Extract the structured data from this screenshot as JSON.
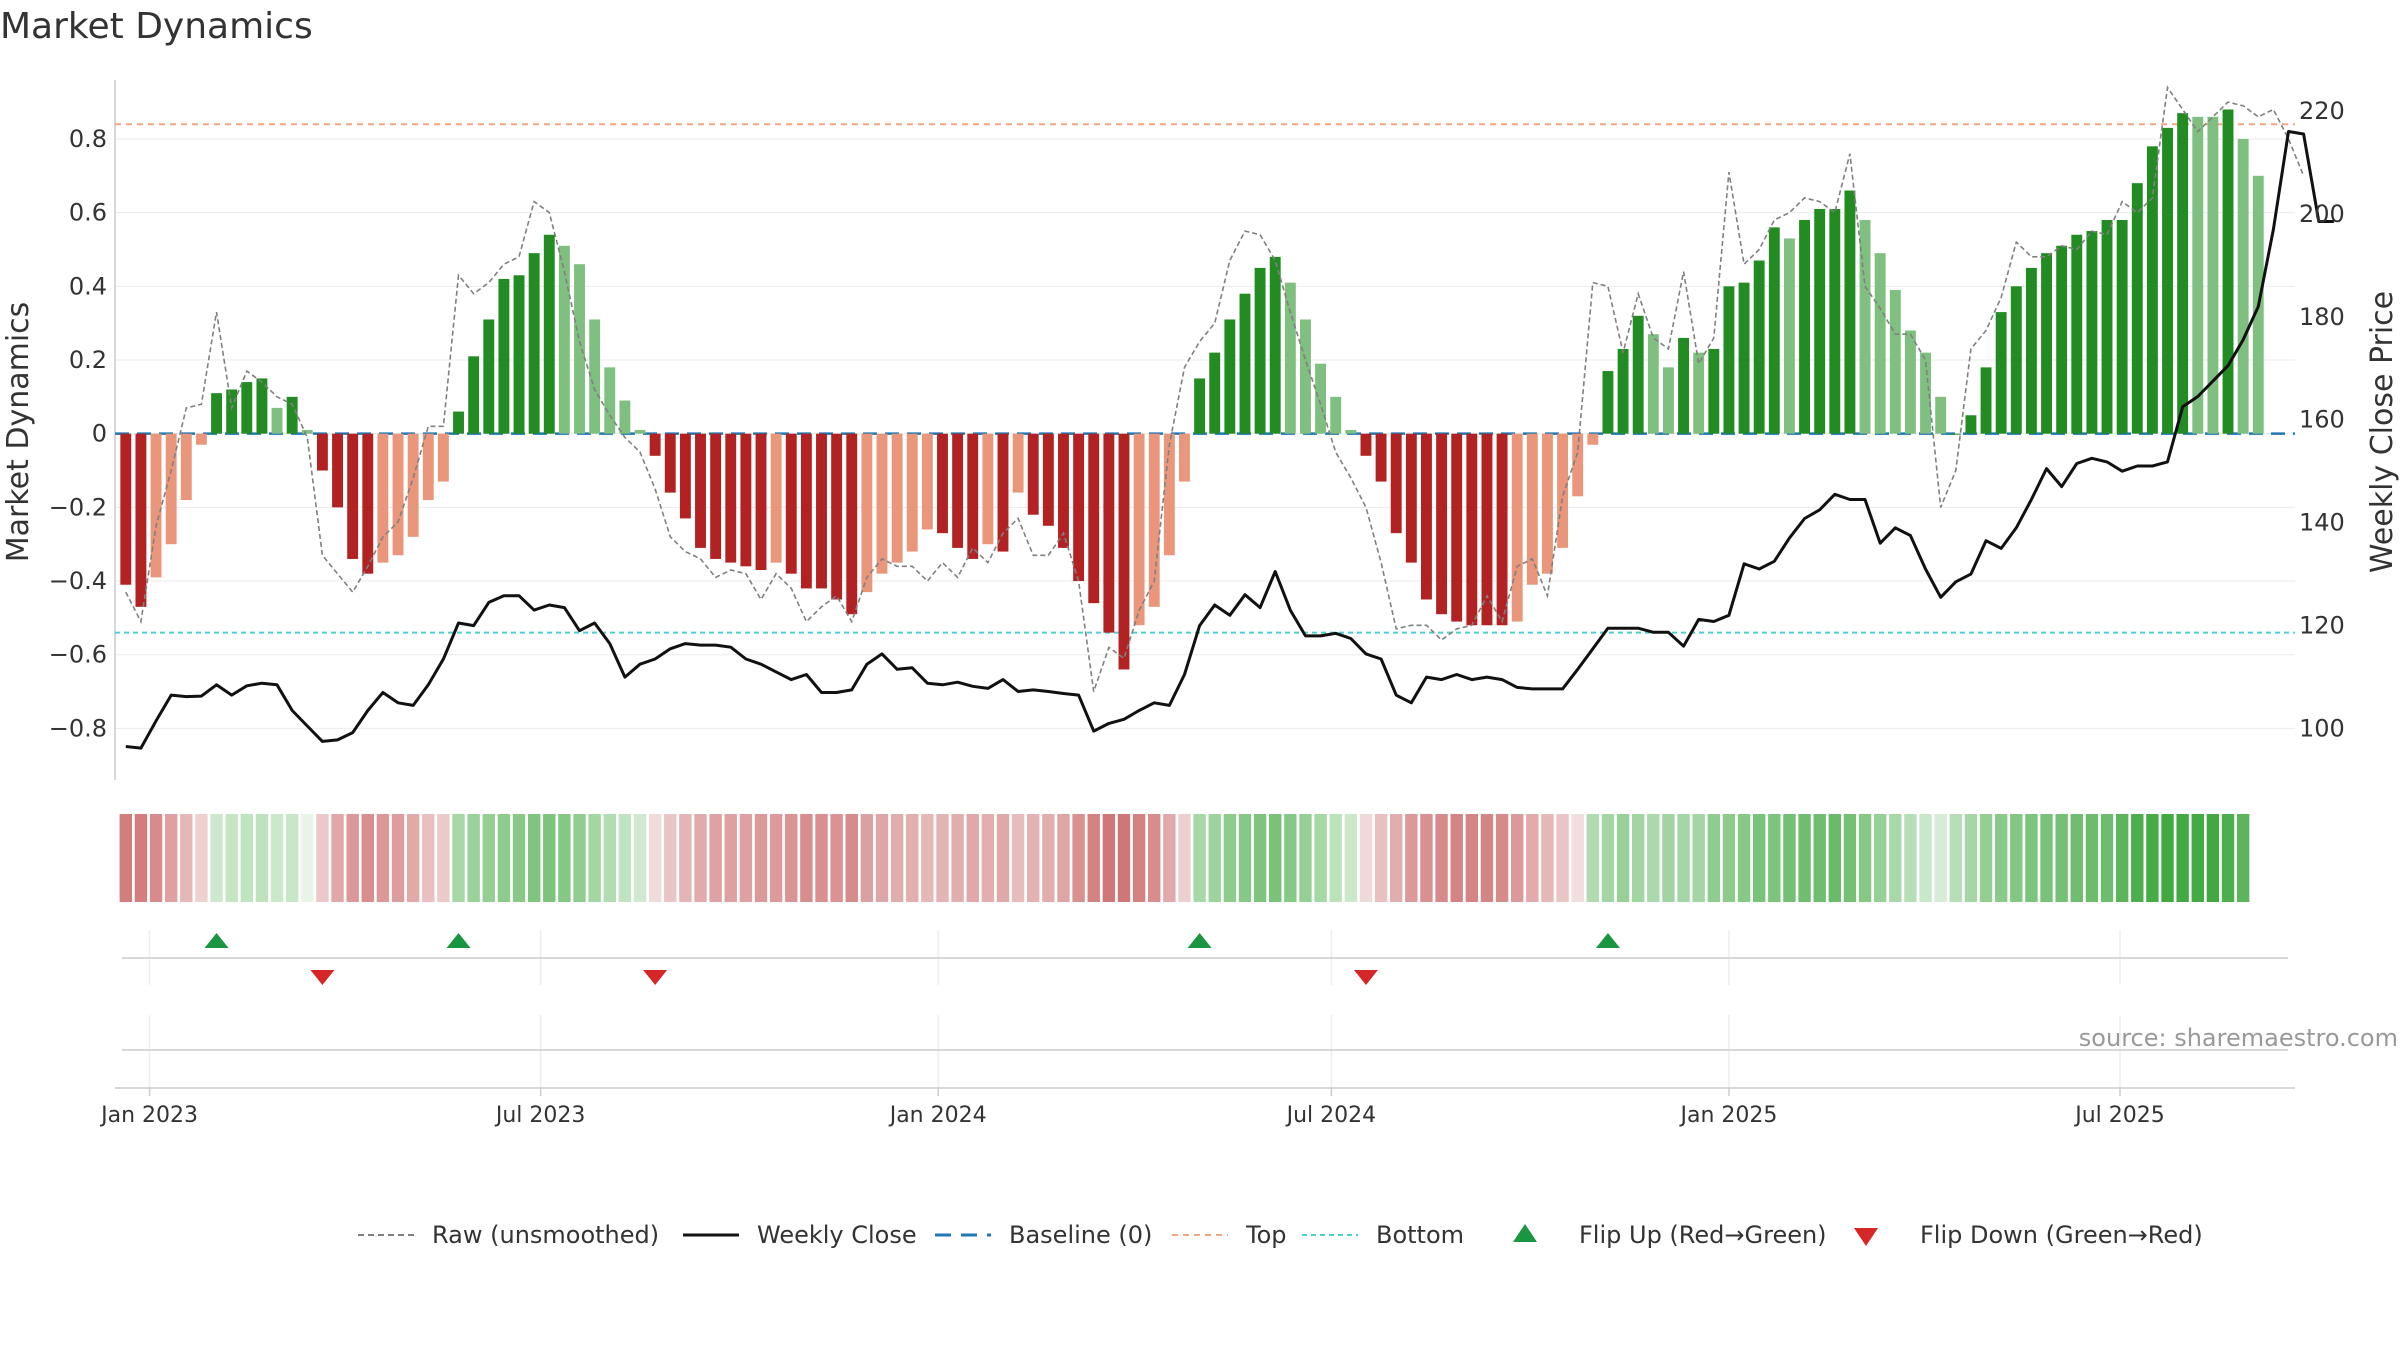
{
  "chart_data": {
    "type": "bar",
    "title": "Market Dynamics",
    "ylabel_left": "Market Dynamics",
    "ylabel_right": "Weekly Close Price",
    "ylim_left": [
      -0.94,
      0.96
    ],
    "ylim_right": [
      90,
      226
    ],
    "yticks_left": [
      -0.8,
      -0.6,
      -0.4,
      -0.2,
      0,
      0.2,
      0.4,
      0.6,
      0.8
    ],
    "ytick_labels_left": [
      "−0.8",
      "−0.6",
      "−0.4",
      "−0.2",
      "0",
      "0.2",
      "0.4",
      "0.6",
      "0.8"
    ],
    "yticks_right": [
      100,
      120,
      140,
      160,
      180,
      200,
      220
    ],
    "ytick_labels_right": [
      "100",
      "120",
      "140",
      "160",
      "180",
      "200",
      "220"
    ],
    "top_level": 0.84,
    "bottom_level": -0.54,
    "x_start": "2022-12-16",
    "x_days_per_week": 7,
    "x_ticks": [
      {
        "label": "Jan 2023",
        "day": 16
      },
      {
        "label": "Jul 2023",
        "day": 197
      },
      {
        "label": "Jan 2024",
        "day": 381
      },
      {
        "label": "Jul 2024",
        "day": 563
      },
      {
        "label": "Jan 2025",
        "day": 747
      },
      {
        "label": "Jul 2025",
        "day": 928
      }
    ],
    "x_domain_days": [
      0,
      1009
    ],
    "dynamics": [
      -0.41,
      -0.47,
      -0.39,
      -0.3,
      -0.18,
      -0.03,
      0.11,
      0.12,
      0.14,
      0.15,
      0.07,
      0.1,
      0.01,
      -0.1,
      -0.2,
      -0.34,
      -0.38,
      -0.35,
      -0.33,
      -0.28,
      -0.18,
      -0.13,
      0.06,
      0.21,
      0.31,
      0.42,
      0.43,
      0.49,
      0.54,
      0.51,
      0.46,
      0.31,
      0.18,
      0.09,
      0.01,
      -0.06,
      -0.16,
      -0.23,
      -0.31,
      -0.34,
      -0.35,
      -0.36,
      -0.37,
      -0.35,
      -0.38,
      -0.42,
      -0.42,
      -0.45,
      -0.49,
      -0.43,
      -0.38,
      -0.35,
      -0.32,
      -0.26,
      -0.27,
      -0.31,
      -0.34,
      -0.3,
      -0.32,
      -0.16,
      -0.22,
      -0.25,
      -0.31,
      -0.4,
      -0.46,
      -0.54,
      -0.64,
      -0.52,
      -0.47,
      -0.33,
      -0.13,
      0.15,
      0.22,
      0.31,
      0.38,
      0.45,
      0.48,
      0.41,
      0.31,
      0.19,
      0.1,
      0.01,
      -0.06,
      -0.13,
      -0.27,
      -0.35,
      -0.45,
      -0.49,
      -0.51,
      -0.52,
      -0.52,
      -0.52,
      -0.51,
      -0.41,
      -0.38,
      -0.31,
      -0.17,
      -0.03,
      0.17,
      0.23,
      0.32,
      0.27,
      0.18,
      0.26,
      0.22,
      0.23,
      0.4,
      0.41,
      0.47,
      0.56,
      0.53,
      0.58,
      0.61,
      0.61,
      0.66,
      0.58,
      0.49,
      0.39,
      0.28,
      0.22,
      0.1,
      0.0,
      0.05,
      0.18,
      0.33,
      0.4,
      0.45,
      0.49,
      0.51,
      0.54,
      0.55,
      0.58,
      0.58,
      0.68,
      0.78,
      0.83,
      0.87,
      0.86,
      0.86,
      0.88,
      0.8,
      0.7
    ],
    "bar_colors": [
      "#b22222",
      "#b22222",
      "#e9967a",
      "#e9967a",
      "#e9967a",
      "#e9967a",
      "#228b22",
      "#228b22",
      "#228b22",
      "#228b22",
      "#7fbf7f",
      "#228b22",
      "#7fbf7f",
      "#b22222",
      "#b22222",
      "#b22222",
      "#b22222",
      "#e9967a",
      "#e9967a",
      "#e9967a",
      "#e9967a",
      "#e9967a",
      "#228b22",
      "#228b22",
      "#228b22",
      "#228b22",
      "#228b22",
      "#228b22",
      "#228b22",
      "#7fbf7f",
      "#7fbf7f",
      "#7fbf7f",
      "#7fbf7f",
      "#7fbf7f",
      "#7fbf7f",
      "#b22222",
      "#b22222",
      "#b22222",
      "#b22222",
      "#b22222",
      "#b22222",
      "#b22222",
      "#b22222",
      "#e9967a",
      "#b22222",
      "#b22222",
      "#b22222",
      "#b22222",
      "#b22222",
      "#e9967a",
      "#e9967a",
      "#e9967a",
      "#e9967a",
      "#e9967a",
      "#b22222",
      "#b22222",
      "#b22222",
      "#e9967a",
      "#b22222",
      "#e9967a",
      "#b22222",
      "#b22222",
      "#b22222",
      "#b22222",
      "#b22222",
      "#b22222",
      "#b22222",
      "#e9967a",
      "#e9967a",
      "#e9967a",
      "#e9967a",
      "#228b22",
      "#228b22",
      "#228b22",
      "#228b22",
      "#228b22",
      "#228b22",
      "#7fbf7f",
      "#7fbf7f",
      "#7fbf7f",
      "#7fbf7f",
      "#7fbf7f",
      "#b22222",
      "#b22222",
      "#b22222",
      "#b22222",
      "#b22222",
      "#b22222",
      "#b22222",
      "#b22222",
      "#b22222",
      "#b22222",
      "#e9967a",
      "#e9967a",
      "#e9967a",
      "#e9967a",
      "#e9967a",
      "#e9967a",
      "#228b22",
      "#228b22",
      "#228b22",
      "#7fbf7f",
      "#7fbf7f",
      "#228b22",
      "#7fbf7f",
      "#228b22",
      "#228b22",
      "#228b22",
      "#228b22",
      "#228b22",
      "#7fbf7f",
      "#228b22",
      "#228b22",
      "#228b22",
      "#228b22",
      "#7fbf7f",
      "#7fbf7f",
      "#7fbf7f",
      "#7fbf7f",
      "#7fbf7f",
      "#7fbf7f",
      "#228b22",
      "#228b22",
      "#228b22",
      "#228b22",
      "#228b22",
      "#228b22",
      "#228b22",
      "#228b22",
      "#228b22",
      "#228b22",
      "#228b22",
      "#228b22",
      "#228b22",
      "#228b22",
      "#228b22",
      "#228b22",
      "#7fbf7f",
      "#7fbf7f",
      "#228b22",
      "#7fbf7f",
      "#7fbf7f"
    ],
    "raw": [
      -0.43,
      -0.51,
      -0.25,
      -0.1,
      0.07,
      0.08,
      0.33,
      0.07,
      0.17,
      0.14,
      0.1,
      0.08,
      -0.01,
      -0.33,
      -0.38,
      -0.43,
      -0.36,
      -0.28,
      -0.24,
      -0.12,
      0.02,
      0.02,
      0.43,
      0.38,
      0.41,
      0.46,
      0.48,
      0.63,
      0.6,
      0.44,
      0.25,
      0.12,
      0.05,
      -0.01,
      -0.05,
      -0.15,
      -0.28,
      -0.32,
      -0.34,
      -0.39,
      -0.37,
      -0.38,
      -0.45,
      -0.38,
      -0.42,
      -0.51,
      -0.47,
      -0.44,
      -0.51,
      -0.39,
      -0.34,
      -0.36,
      -0.36,
      -0.4,
      -0.35,
      -0.39,
      -0.31,
      -0.35,
      -0.27,
      -0.23,
      -0.33,
      -0.33,
      -0.27,
      -0.4,
      -0.7,
      -0.58,
      -0.61,
      -0.48,
      -0.4,
      -0.03,
      0.18,
      0.25,
      0.3,
      0.47,
      0.55,
      0.54,
      0.47,
      0.33,
      0.2,
      0.08,
      -0.05,
      -0.12,
      -0.2,
      -0.35,
      -0.53,
      -0.52,
      -0.52,
      -0.56,
      -0.53,
      -0.52,
      -0.44,
      -0.51,
      -0.36,
      -0.34,
      -0.44,
      -0.17,
      -0.05,
      0.41,
      0.4,
      0.22,
      0.38,
      0.26,
      0.23,
      0.44,
      0.19,
      0.26,
      0.71,
      0.46,
      0.5,
      0.58,
      0.6,
      0.64,
      0.63,
      0.6,
      0.76,
      0.4,
      0.34,
      0.27,
      0.27,
      0.2,
      -0.2,
      -0.1,
      0.23,
      0.28,
      0.37,
      0.52,
      0.48,
      0.48,
      0.51,
      0.5,
      0.55,
      0.54,
      0.63,
      0.6,
      0.64,
      0.94,
      0.88,
      0.82,
      0.86,
      0.9,
      0.89,
      0.86,
      0.88,
      0.8,
      0.7
    ],
    "close": [
      96.5,
      96.2,
      101.5,
      106.5,
      106.2,
      106.3,
      108.5,
      106.5,
      108.3,
      108.8,
      108.5,
      103.5,
      100.5,
      97.5,
      97.8,
      99.2,
      103.5,
      107.0,
      105.0,
      104.5,
      108.5,
      113.5,
      120.5,
      120.0,
      124.5,
      125.8,
      125.8,
      123.0,
      124.0,
      123.5,
      119.0,
      120.5,
      116.5,
      110.0,
      112.5,
      113.5,
      115.5,
      116.5,
      116.2,
      116.2,
      115.8,
      113.5,
      112.5,
      111.0,
      109.5,
      110.5,
      107.0,
      107.0,
      107.5,
      112.5,
      114.5,
      111.5,
      111.8,
      108.8,
      108.5,
      109.0,
      108.2,
      107.8,
      109.5,
      107.2,
      107.5,
      107.2,
      106.8,
      106.5,
      99.5,
      101.0,
      101.8,
      103.5,
      105.0,
      104.5,
      110.5,
      120.0,
      124.0,
      122.0,
      126.0,
      123.5,
      130.5,
      123.0,
      118.0,
      118.0,
      118.5,
      117.5,
      114.5,
      113.5,
      106.5,
      105.0,
      110.0,
      109.5,
      110.5,
      109.5,
      110.0,
      109.5,
      108.0,
      107.7,
      107.7,
      107.7,
      111.5,
      115.5,
      119.5,
      119.5,
      119.5,
      118.7,
      118.7,
      116.0,
      121.2,
      120.8,
      122.0,
      132.0,
      131.0,
      132.5,
      137.0,
      140.8,
      142.5,
      145.5,
      144.5,
      144.5,
      136.0,
      139.0,
      137.5,
      131.0,
      125.5,
      128.5,
      130.0,
      136.5,
      135.0,
      139.0,
      144.5,
      150.5,
      147.0,
      151.5,
      152.5,
      151.8,
      150.0,
      151.0,
      151.0,
      151.8,
      162.5,
      164.5,
      167.5,
      170.5,
      175.5,
      182.0,
      197.0,
      216.0,
      215.5,
      198.5,
      198.5
    ]
  },
  "strip": {
    "colors": [
      "#d47d7d",
      "#d47d7d",
      "#d88b8b",
      "#dea0a0",
      "#e6b7b7",
      "#efd1d1",
      "#cde9cd",
      "#c5e5c5",
      "#c0e3c0",
      "#bde2bd",
      "#cbe8cb",
      "#c8e6c8",
      "#e9f4e9",
      "#ecc9c9",
      "#e2a8a8",
      "#dc9898",
      "#d98e8e",
      "#dc9797",
      "#de9d9d",
      "#e2a9a9",
      "#e9bfbf",
      "#edcaca",
      "#a8d8a8",
      "#9bd29b",
      "#94cf94",
      "#8ccb8c",
      "#88c988",
      "#7fc57f",
      "#7cc47c",
      "#85c885",
      "#91cd91",
      "#a3d6a3",
      "#b3dcb3",
      "#c2e3c2",
      "#d0e9d0",
      "#f1dcdc",
      "#ebc5c5",
      "#e5b5b5",
      "#e2abab",
      "#dfa2a2",
      "#dea0a0",
      "#dea0a0",
      "#dc9999",
      "#dc9a9a",
      "#da9494",
      "#d88e8e",
      "#d98f8f",
      "#da9292",
      "#d88b8b",
      "#dba0a0",
      "#dea6a6",
      "#e1acac",
      "#e2aeae",
      "#e5b7b7",
      "#e4b4b4",
      "#e2adad",
      "#e0a8a8",
      "#e2aeae",
      "#e0a9a9",
      "#e7bcbc",
      "#e3b2b2",
      "#e2adad",
      "#dfa5a5",
      "#d99090",
      "#d48282",
      "#d07878",
      "#cf7676",
      "#d48282",
      "#d88c8c",
      "#e1a9a9",
      "#ecd0d0",
      "#a8d8a8",
      "#9ed39e",
      "#8ecc8e",
      "#86c886",
      "#7ec47e",
      "#7ac27a",
      "#86c886",
      "#95cf95",
      "#a6d8a6",
      "#bce2bc",
      "#cbe8cb",
      "#f0d9d9",
      "#e9c0c0",
      "#e2adad",
      "#dc9999",
      "#d89090",
      "#d68a8a",
      "#d48484",
      "#d48484",
      "#d48585",
      "#d68a8a",
      "#dc9999",
      "#e2aaaa",
      "#e6b7b7",
      "#eac5c5",
      "#f2dede",
      "#b0dab0",
      "#a4d5a4",
      "#98d098",
      "#a3d5a3",
      "#acd9ac",
      "#a2d4a2",
      "#a5d6a5",
      "#a4d5a4",
      "#8fcc8f",
      "#8dcb8d",
      "#86c886",
      "#79c279",
      "#7dc47d",
      "#73bf73",
      "#70bd70",
      "#6fbd6f",
      "#69ba69",
      "#76c076",
      "#86c886",
      "#97d097",
      "#a9d8a9",
      "#b7dfb7",
      "#c9e7c9",
      "#d6ecd6",
      "#b7deb7",
      "#a5d6a5",
      "#93ce93",
      "#89ca89",
      "#83c783",
      "#7cc47c",
      "#79c279",
      "#74c074",
      "#70bd70",
      "#6cbc6c",
      "#6ebd6e",
      "#5cb55c",
      "#4cae4c",
      "#46ab46",
      "#42a942",
      "#43aa43",
      "#44aa44",
      "#42a942",
      "#4cae4c",
      "#5cb55c"
    ]
  },
  "flips": {
    "up_weeks": [
      6,
      22,
      71,
      98
    ],
    "down_weeks": [
      13,
      35,
      82
    ]
  },
  "source": "source: sharemaestro.com",
  "legend": [
    {
      "key": "raw",
      "label": "Raw (unsmoothed)",
      "color": "#808080"
    },
    {
      "key": "close",
      "label": "Weekly Close",
      "color": "#111111"
    },
    {
      "key": "baseline",
      "label": "Baseline (0)",
      "color": "#1f77b4"
    },
    {
      "key": "top",
      "label": "Top",
      "color": "#f4a582"
    },
    {
      "key": "bottom",
      "label": "Bottom",
      "color": "#4dd0d0"
    },
    {
      "key": "flip_up",
      "label": "Flip Up (Red→Green)",
      "color": "#1a9641"
    },
    {
      "key": "flip_down",
      "label": "Flip Down (Green→Red)",
      "color": "#d62728"
    }
  ]
}
